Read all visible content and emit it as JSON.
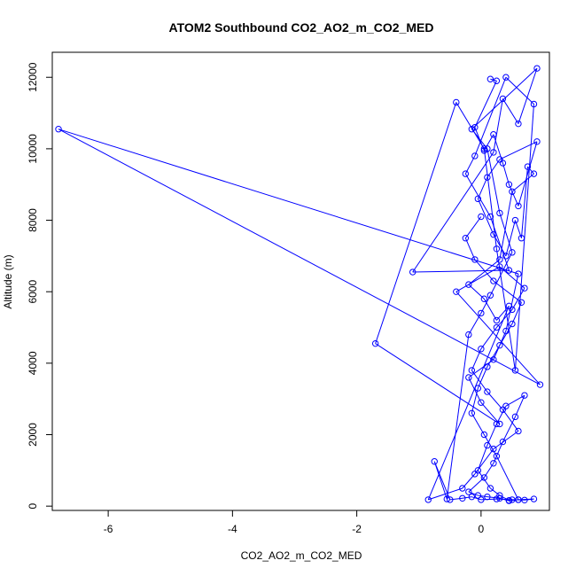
{
  "chart_data": {
    "type": "scatter",
    "title": "ATOM2 Southbound CO2_AO2_m_CO2_MED",
    "xlabel": "CO2_AO2_m_CO2_MED",
    "ylabel": "Altitude (m)",
    "xlim": [
      -6.9,
      1.1
    ],
    "ylim": [
      -120,
      12700
    ],
    "xticks": [
      -6,
      -4,
      -2,
      0
    ],
    "yticks": [
      0,
      2000,
      4000,
      6000,
      8000,
      10000,
      12000
    ],
    "x_tick_labels": [
      "-6",
      "-4",
      "-2",
      "0"
    ],
    "y_tick_labels": [
      "0",
      "2000",
      "4000",
      "6000",
      "8000",
      "10000",
      "12000"
    ],
    "grid": false,
    "marker": "open-circle",
    "connected": true,
    "color": "#0000ff",
    "series": [
      {
        "x": [
          0.15,
          0.25,
          -0.1,
          0.05,
          0.2,
          0.35,
          0.45,
          0.6,
          0.9,
          0.3,
          0.1,
          -0.05,
          0.2,
          0.4,
          0.55,
          0.65,
          0.75,
          0.85,
          0.5,
          0.3,
          -0.2,
          0.05,
          0.25,
          0.45,
          -0.85,
          -0.3,
          -0.1,
          0.2,
          0.6,
          0.35,
          0.1,
          -0.15,
          0.0,
          0.25,
          0.5,
          0.7,
          0.3,
          -0.4,
          0.95,
          -6.8,
          0.6,
          0.4,
          0.2,
          -0.2,
          0.0,
          0.3,
          -1.7,
          -0.4,
          0.05,
          0.25,
          0.55,
          0.85,
          0.4,
          -0.1,
          -0.25,
          0.15,
          0.45,
          -1.1,
          0.2,
          0.35,
          0.6,
          0.9,
          -0.15,
          0.1,
          0.3,
          0.5,
          0.15,
          0.0,
          -0.2,
          -0.55,
          -0.75,
          -0.5,
          -0.3,
          -0.15,
          0.0,
          0.25,
          0.5,
          0.7,
          0.85,
          0.6,
          0.45,
          0.3,
          0.1,
          -0.05,
          -0.2,
          0.05,
          0.2,
          0.35,
          0.55,
          0.7,
          0.4,
          0.25,
          0.1,
          -0.05,
          0.15,
          0.3,
          0.45,
          0.6,
          0.25,
          0.05,
          -0.15,
          -0.05,
          0.1,
          0.3,
          0.5,
          0.65,
          0.2,
          -0.1,
          -0.25,
          0.0
        ],
        "y": [
          11950,
          11900,
          10600,
          9950,
          10400,
          9600,
          9000,
          8400,
          10200,
          9700,
          9200,
          8600,
          7600,
          7000,
          8000,
          7500,
          9500,
          9300,
          8800,
          6900,
          6200,
          5800,
          5200,
          5600,
          180,
          500,
          900,
          1600,
          2100,
          2700,
          3200,
          3800,
          4400,
          5000,
          5500,
          6100,
          6700,
          6000,
          3400,
          10550,
          6500,
          4900,
          4100,
          3600,
          2900,
          2300,
          4550,
          11300,
          10000,
          7200,
          3800,
          11250,
          12000,
          9800,
          9300,
          8100,
          6600,
          6550,
          9900,
          11400,
          10700,
          12250,
          10550,
          10000,
          8200,
          7100,
          5900,
          5400,
          4800,
          200,
          1250,
          180,
          220,
          260,
          180,
          200,
          180,
          170,
          200,
          180,
          150,
          220,
          260,
          300,
          400,
          800,
          1200,
          1800,
          2500,
          3100,
          2800,
          2300,
          1700,
          1000,
          500,
          300,
          160,
          180,
          1400,
          2000,
          2600,
          3300,
          3900,
          4500,
          5100,
          5700,
          6300,
          6900,
          7500,
          8100
        ]
      }
    ]
  }
}
